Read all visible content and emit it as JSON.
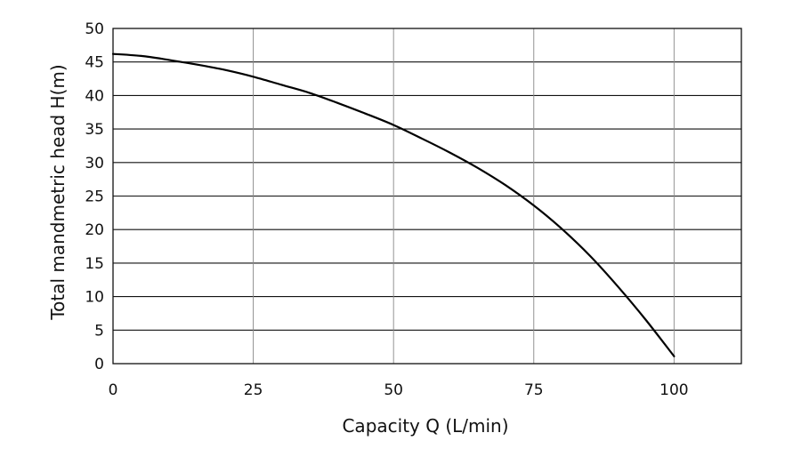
{
  "chart_data": {
    "type": "line",
    "title": "",
    "xlabel": "Capacity Q (L/min)",
    "ylabel": "Total mandmetric head H(m)",
    "xlim": [
      0,
      112
    ],
    "ylim": [
      0,
      50
    ],
    "xticks": [
      0,
      25,
      50,
      75,
      100
    ],
    "yticks": [
      0,
      5,
      10,
      15,
      20,
      25,
      30,
      35,
      40,
      45,
      50
    ],
    "grid": true,
    "legend": "none",
    "series": [
      {
        "x": [
          0,
          5,
          10,
          15,
          20,
          25,
          30,
          35,
          40,
          45,
          50,
          55,
          60,
          65,
          70,
          75,
          80,
          85,
          90,
          95,
          100
        ],
        "y": [
          46.2,
          45.9,
          45.3,
          44.6,
          43.8,
          42.8,
          41.6,
          40.4,
          38.9,
          37.3,
          35.6,
          33.6,
          31.5,
          29.2,
          26.6,
          23.6,
          20.1,
          16.1,
          11.5,
          6.5,
          1.1
        ]
      }
    ],
    "colors": {
      "line": "#000000",
      "grid_major": "#111111",
      "grid_minor": "#888888"
    }
  }
}
